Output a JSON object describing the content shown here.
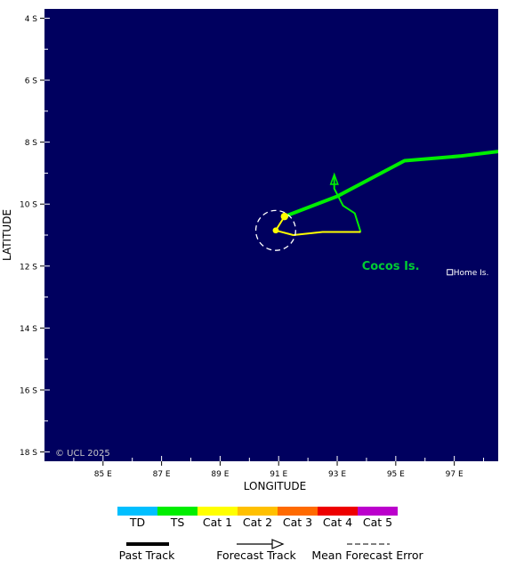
{
  "map": {
    "background_color": "#00005f",
    "credit": "© UCL 2025",
    "x_axis_title": "LONGITUDE",
    "y_axis_title": "LATITUDE",
    "lon_range": [
      83.0,
      98.5
    ],
    "lat_range_south": [
      3.7,
      18.3
    ],
    "lon_ticks": [
      {
        "value": 85,
        "label": "85 E"
      },
      {
        "value": 87,
        "label": "87 E"
      },
      {
        "value": 89,
        "label": "89 E"
      },
      {
        "value": 91,
        "label": "91 E"
      },
      {
        "value": 93,
        "label": "93 E"
      },
      {
        "value": 95,
        "label": "95 E"
      },
      {
        "value": 97,
        "label": "97 E"
      }
    ],
    "lat_ticks": [
      {
        "value": 4,
        "label": "4 S"
      },
      {
        "value": 6,
        "label": "6 S"
      },
      {
        "value": 8,
        "label": "8 S"
      },
      {
        "value": 10,
        "label": "10 S"
      },
      {
        "value": 12,
        "label": "12 S"
      },
      {
        "value": 14,
        "label": "14 S"
      },
      {
        "value": 16,
        "label": "16 S"
      },
      {
        "value": 18,
        "label": "18 S"
      }
    ],
    "places": [
      {
        "name": "Cocos Is.",
        "lon": 95.3,
        "lat": 12.0,
        "color": "#00cc33",
        "kind": "island"
      },
      {
        "name": "Home Is.",
        "lon": 96.85,
        "lat": 12.2,
        "color": "#ffffff",
        "kind": "town"
      }
    ]
  },
  "tracks": {
    "past_track": {
      "color": "#00ee00",
      "points": [
        [
          98.5,
          8.3
        ],
        [
          97.2,
          8.45
        ],
        [
          95.3,
          8.6
        ],
        [
          94.3,
          9.1
        ],
        [
          93.0,
          9.75
        ],
        [
          91.2,
          10.4
        ]
      ]
    },
    "forecast_track_ts": {
      "color": "#00ee00",
      "points": [
        [
          93.8,
          10.9
        ],
        [
          93.6,
          10.3
        ],
        [
          93.2,
          10.05
        ],
        [
          92.9,
          9.5
        ],
        [
          92.9,
          9.1
        ]
      ]
    },
    "forecast_track_cat1": {
      "color": "#ffff00",
      "points": [
        [
          91.2,
          10.4
        ],
        [
          90.9,
          10.85
        ],
        [
          91.5,
          11.0
        ],
        [
          92.5,
          10.9
        ],
        [
          93.8,
          10.9
        ]
      ]
    },
    "current_position": {
      "lon": 91.2,
      "lat": 10.4
    },
    "forecast_point": {
      "lon": 90.9,
      "lat": 10.85
    },
    "error_circle": {
      "lon": 90.9,
      "lat": 10.85,
      "radius_deg": 0.68
    }
  },
  "legend": {
    "intensity_scale": [
      {
        "label": "TD",
        "color": "#00bfff"
      },
      {
        "label": "TS",
        "color": "#00ee00"
      },
      {
        "label": "Cat 1",
        "color": "#ffff00"
      },
      {
        "label": "Cat 2",
        "color": "#ffc000"
      },
      {
        "label": "Cat 3",
        "color": "#ff6a00"
      },
      {
        "label": "Cat 4",
        "color": "#ee0000"
      },
      {
        "label": "Cat 5",
        "color": "#bb00cc"
      }
    ],
    "past_track_label": "Past Track",
    "forecast_track_label": "Forecast Track",
    "error_label": "Mean Forecast Error"
  }
}
